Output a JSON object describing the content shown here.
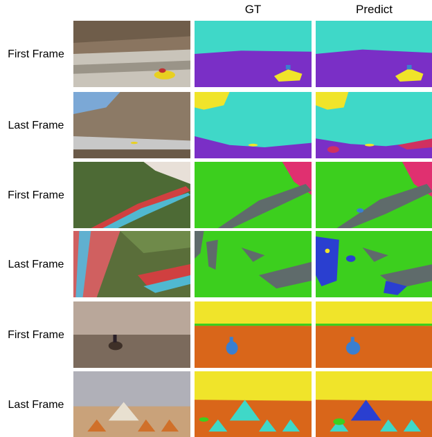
{
  "columns": [
    "GT",
    "Predict"
  ],
  "rows": [
    "First Frame",
    "Last Frame",
    "First Frame",
    "Last Frame",
    "First Frame",
    "Last Frame"
  ]
}
